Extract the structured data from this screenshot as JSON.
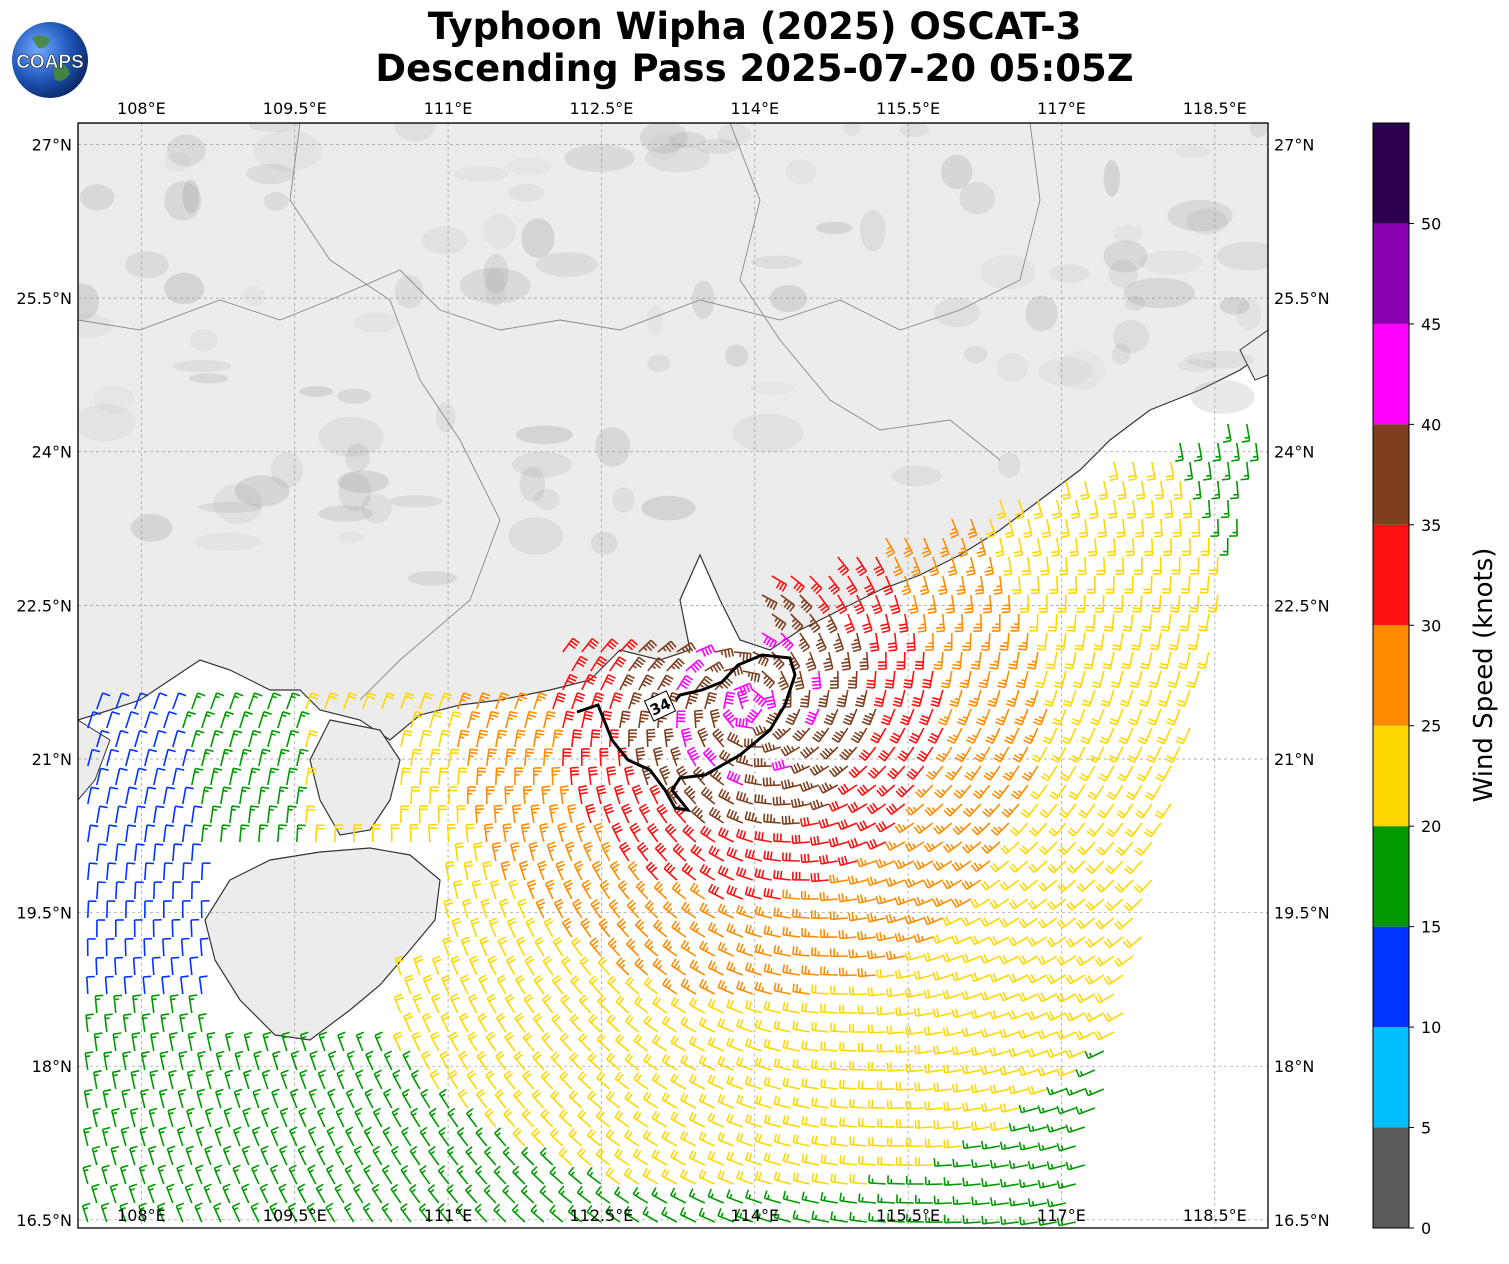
{
  "title": {
    "line1": "Typhoon Wipha (2025) OSCAT-3",
    "line2": "Descending Pass 2025-07-20 05:05Z"
  },
  "logo": {
    "text": "COAPS",
    "icon": "globe-icon"
  },
  "axes": {
    "lon_labels": [
      "108°E",
      "109.5°E",
      "111°E",
      "112.5°E",
      "114°E",
      "115.5°E",
      "117°E",
      "118.5°E"
    ],
    "lon_values": [
      108,
      109.5,
      111,
      112.5,
      114,
      115.5,
      117,
      118.5
    ],
    "lat_labels": [
      "27°N",
      "25.5°N",
      "24°N",
      "22.5°N",
      "21°N",
      "19.5°N",
      "18°N",
      "16.5°N"
    ],
    "lat_values": [
      27,
      25.5,
      24,
      22.5,
      21,
      19.5,
      18,
      16.5
    ],
    "lon_range": [
      107.38,
      119.02
    ],
    "lat_range": [
      16.42,
      27.21
    ]
  },
  "colorbar": {
    "label": "Wind Speed (knots)",
    "ticks": [
      "0",
      "5",
      "10",
      "15",
      "20",
      "25",
      "30",
      "35",
      "40",
      "45",
      "50"
    ],
    "bins": [
      {
        "min": 0,
        "max": 5,
        "color": "#5a5a5a"
      },
      {
        "min": 5,
        "max": 10,
        "color": "#00bfff"
      },
      {
        "min": 10,
        "max": 15,
        "color": "#0033ff"
      },
      {
        "min": 15,
        "max": 20,
        "color": "#009900"
      },
      {
        "min": 20,
        "max": 25,
        "color": "#ffd700"
      },
      {
        "min": 25,
        "max": 30,
        "color": "#ff8c00"
      },
      {
        "min": 30,
        "max": 35,
        "color": "#ff1010"
      },
      {
        "min": 35,
        "max": 40,
        "color": "#7f3f1f"
      },
      {
        "min": 40,
        "max": 45,
        "color": "#ff00ff"
      },
      {
        "min": 45,
        "max": 50,
        "color": "#8b00b3"
      },
      {
        "min": 50,
        "max": 55,
        "color": "#2a004f"
      }
    ]
  },
  "contour": {
    "label": "34"
  },
  "colors": {
    "grid": "#999999",
    "coast": "#333333",
    "border": "#888888",
    "land": "#f0f0f0"
  }
}
